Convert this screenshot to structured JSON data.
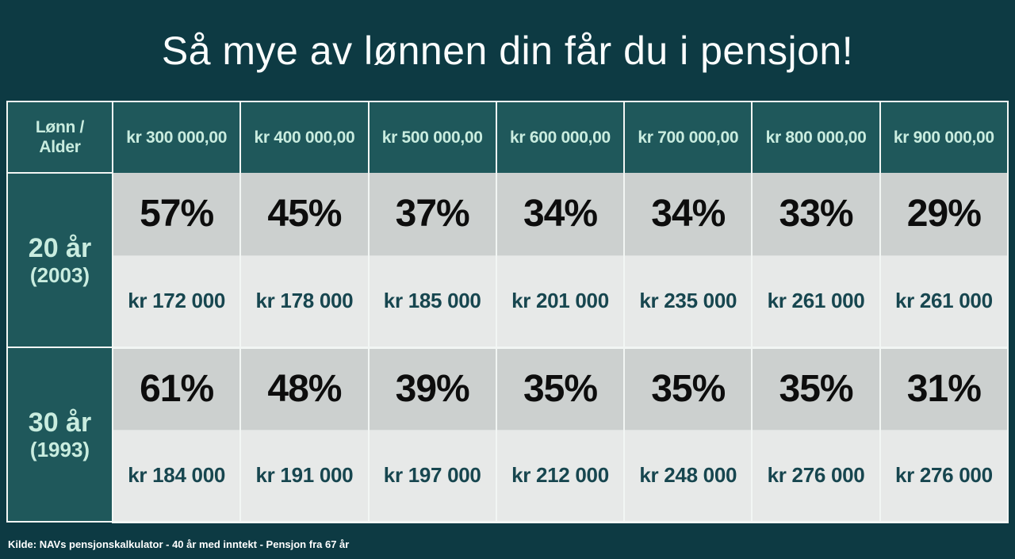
{
  "page": {
    "title": "Så mye av lønnen din får du i pensjon!",
    "source_note": "Kilde: NAVs pensjonskalkulator - 40 år med inntekt - Pensjon fra 67 år"
  },
  "colors": {
    "background": "#0d3a43",
    "header_cell_teal": "#1f585b",
    "header_text_mint": "#c9ecdf",
    "percent_row_bg": "#ccd0cf",
    "amount_row_bg": "#e7e9e8",
    "amount_text": "#17464f",
    "percent_text": "#0d0d0d",
    "grid_border": "#f2f6f4",
    "title_text": "#fafdfd"
  },
  "table": {
    "corner": {
      "line1": "Lønn /",
      "line2": "Alder"
    },
    "salary_headers": [
      "kr 300 000,00",
      "kr 400 000,00",
      "kr 500 000,00",
      "kr 600 000,00",
      "kr 700 000,00",
      "kr 800 000,00",
      "kr 900 000,00"
    ],
    "groups": [
      {
        "age": "20 år",
        "year": "(2003)",
        "percents": [
          "57%",
          "45%",
          "37%",
          "34%",
          "34%",
          "33%",
          "29%"
        ],
        "amounts": [
          "kr 172 000",
          "kr 178 000",
          "kr 185 000",
          "kr 201 000",
          "kr 235 000",
          "kr 261 000",
          "kr 261 000"
        ]
      },
      {
        "age": "30 år",
        "year": "(1993)",
        "percents": [
          "61%",
          "48%",
          "39%",
          "35%",
          "35%",
          "35%",
          "31%"
        ],
        "amounts": [
          "kr 184 000",
          "kr 191 000",
          "kr 197 000",
          "kr 212 000",
          "kr 248 000",
          "kr 276 000",
          "kr 276 000"
        ]
      }
    ]
  },
  "chart_data": {
    "type": "table",
    "title": "Så mye av lønnen din får du i pensjon!",
    "columns": [
      "Lønn / Alder",
      "kr 300 000,00",
      "kr 400 000,00",
      "kr 500 000,00",
      "kr 600 000,00",
      "kr 700 000,00",
      "kr 800 000,00",
      "kr 900 000,00"
    ],
    "rows": [
      {
        "label": "20 år (2003)",
        "percent_of_salary": [
          57,
          45,
          37,
          34,
          34,
          33,
          29
        ],
        "pension_kr": [
          172000,
          178000,
          185000,
          201000,
          235000,
          261000,
          261000
        ]
      },
      {
        "label": "30 år (1993)",
        "percent_of_salary": [
          61,
          48,
          39,
          35,
          35,
          35,
          31
        ],
        "pension_kr": [
          184000,
          191000,
          197000,
          212000,
          248000,
          276000,
          276000
        ]
      }
    ],
    "source": "Kilde: NAVs pensjonskalkulator - 40 år med inntekt - Pensjon fra 67 år"
  }
}
